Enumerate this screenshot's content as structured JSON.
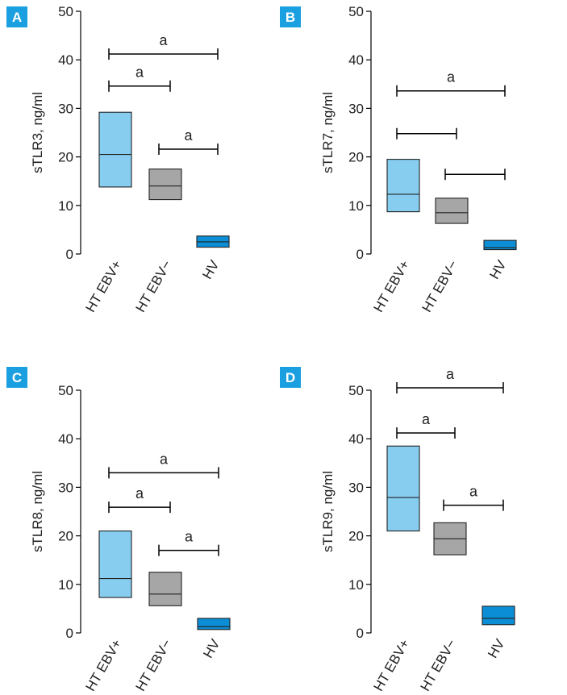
{
  "colors": {
    "HT EBV+": "#87cdf0",
    "HT EBV−": "#a6a6a6",
    "HV": "#0b8ed6",
    "badge": "#1a9fe0"
  },
  "chart_data": [
    {
      "panel": "A",
      "type": "box",
      "ylabel": "sTLR3, ng/ml",
      "ylim": [
        0,
        50
      ],
      "yticks": [
        0,
        10,
        20,
        30,
        40,
        50
      ],
      "categories": [
        "HT EBV+",
        "HT EBV−",
        "HV"
      ],
      "boxes": [
        {
          "category": "HT EBV+",
          "low": 13.8,
          "median": 20.5,
          "high": 29.2
        },
        {
          "category": "HT EBV−",
          "low": 11.2,
          "median": 14.0,
          "high": 17.5
        },
        {
          "category": "HV",
          "low": 1.4,
          "median": 2.5,
          "high": 3.7
        }
      ],
      "significance": [
        {
          "from": 0,
          "to": 2,
          "y": 41.2,
          "label": "a"
        },
        {
          "from": 0,
          "to": 1,
          "y": 34.6,
          "label": "a"
        },
        {
          "from": 1,
          "to": 2,
          "y": 21.6,
          "label": "a"
        }
      ]
    },
    {
      "panel": "B",
      "type": "box",
      "ylabel": "sTLR7, ng/ml",
      "ylim": [
        0,
        50
      ],
      "yticks": [
        0,
        10,
        20,
        30,
        40,
        50
      ],
      "categories": [
        "HT EBV+",
        "HT EBV−",
        "HV"
      ],
      "boxes": [
        {
          "category": "HT EBV+",
          "low": 8.7,
          "median": 12.3,
          "high": 19.5
        },
        {
          "category": "HT EBV−",
          "low": 6.3,
          "median": 8.5,
          "high": 11.5
        },
        {
          "category": "HV",
          "low": 0.9,
          "median": 1.3,
          "high": 2.8
        }
      ],
      "significance": [
        {
          "from": 0,
          "to": 2,
          "y": 33.6,
          "label": "a"
        },
        {
          "from": 0,
          "to": 1,
          "y": 24.8,
          "label": ""
        },
        {
          "from": 1,
          "to": 2,
          "y": 16.4,
          "label": ""
        }
      ]
    },
    {
      "panel": "C",
      "type": "box",
      "ylabel": "sTLR8, ng/ml",
      "ylim": [
        0,
        50
      ],
      "yticks": [
        0,
        10,
        20,
        30,
        40,
        50
      ],
      "categories": [
        "HT EBV+",
        "HT EBV−",
        "HV"
      ],
      "boxes": [
        {
          "category": "HT EBV+",
          "low": 7.3,
          "median": 11.2,
          "high": 21.0
        },
        {
          "category": "HT EBV−",
          "low": 5.6,
          "median": 8.0,
          "high": 12.5
        },
        {
          "category": "HV",
          "low": 0.7,
          "median": 1.3,
          "high": 3.0
        }
      ],
      "significance": [
        {
          "from": 0,
          "to": 2,
          "y": 33.0,
          "label": "a"
        },
        {
          "from": 0,
          "to": 1,
          "y": 25.9,
          "label": "a"
        },
        {
          "from": 1,
          "to": 2,
          "y": 17.0,
          "label": "a"
        }
      ]
    },
    {
      "panel": "D",
      "type": "box",
      "ylabel": "sTLR9, ng/ml",
      "ylim": [
        0,
        50
      ],
      "yticks": [
        0,
        10,
        20,
        30,
        40,
        50
      ],
      "categories": [
        "HT EBV+",
        "HT EBV−",
        "HV"
      ],
      "boxes": [
        {
          "category": "HT EBV+",
          "low": 21.0,
          "median": 27.9,
          "high": 38.5
        },
        {
          "category": "HT EBV−",
          "low": 16.1,
          "median": 19.4,
          "high": 22.7
        },
        {
          "category": "HV",
          "low": 1.7,
          "median": 3.0,
          "high": 5.5
        }
      ],
      "significance": [
        {
          "from": 0,
          "to": 2,
          "y": 50.5,
          "label": "a"
        },
        {
          "from": 0,
          "to": 1,
          "y": 41.2,
          "label": "a"
        },
        {
          "from": 1,
          "to": 2,
          "y": 26.3,
          "label": "a"
        }
      ]
    }
  ]
}
